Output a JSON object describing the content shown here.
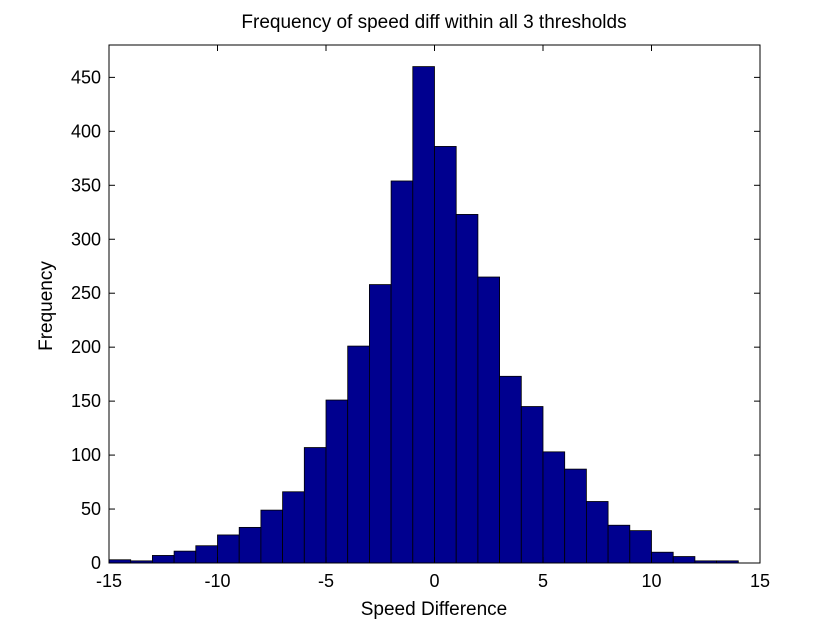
{
  "chart_data": {
    "type": "bar",
    "title": "Frequency of speed diff within all 3 thresholds",
    "xlabel": "Speed Difference",
    "ylabel": "Frequency",
    "xlim": [
      -15,
      15
    ],
    "ylim": [
      0,
      480
    ],
    "xticks": [
      -15,
      -10,
      -5,
      0,
      5,
      10,
      15
    ],
    "yticks": [
      0,
      50,
      100,
      150,
      200,
      250,
      300,
      350,
      400,
      450
    ],
    "bin_width": 1,
    "bin_centers": [
      -14.5,
      -13.5,
      -12.5,
      -11.5,
      -10.5,
      -9.5,
      -8.5,
      -7.5,
      -6.5,
      -5.5,
      -4.5,
      -3.5,
      -2.5,
      -1.5,
      -0.5,
      0.5,
      1.5,
      2.5,
      3.5,
      4.5,
      5.5,
      6.5,
      7.5,
      8.5,
      9.5,
      10.5,
      11.5,
      12.5,
      13.5
    ],
    "values": [
      3,
      2,
      7,
      11,
      16,
      26,
      33,
      49,
      66,
      107,
      151,
      201,
      258,
      354,
      460,
      386,
      323,
      265,
      173,
      145,
      103,
      87,
      57,
      35,
      30,
      10,
      6,
      2,
      2
    ],
    "bar_color": "#00008f",
    "edge_color": "#000000",
    "grid": false
  }
}
